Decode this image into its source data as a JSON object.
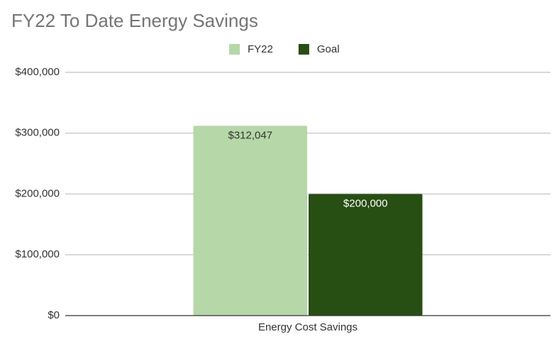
{
  "chart_data": {
    "type": "bar",
    "title": "FY22 To Date Energy Savings",
    "categories": [
      "Energy Cost Savings"
    ],
    "series": [
      {
        "name": "FY22",
        "color": "#b6d7a8",
        "label_color": "#333333",
        "values": [
          312047
        ],
        "value_labels": [
          "$312,047"
        ]
      },
      {
        "name": "Goal",
        "color": "#274e13",
        "label_color": "#ffffff",
        "values": [
          200000
        ],
        "value_labels": [
          "$200,000"
        ]
      }
    ],
    "ylim": [
      0,
      400000
    ],
    "yticks": [
      {
        "value": 0,
        "label": "$0"
      },
      {
        "value": 100000,
        "label": "$100,000"
      },
      {
        "value": 200000,
        "label": "$200,000"
      },
      {
        "value": 300000,
        "label": "$300,000"
      },
      {
        "value": 400000,
        "label": "$400,000"
      }
    ],
    "grid": true,
    "legend": "top"
  }
}
